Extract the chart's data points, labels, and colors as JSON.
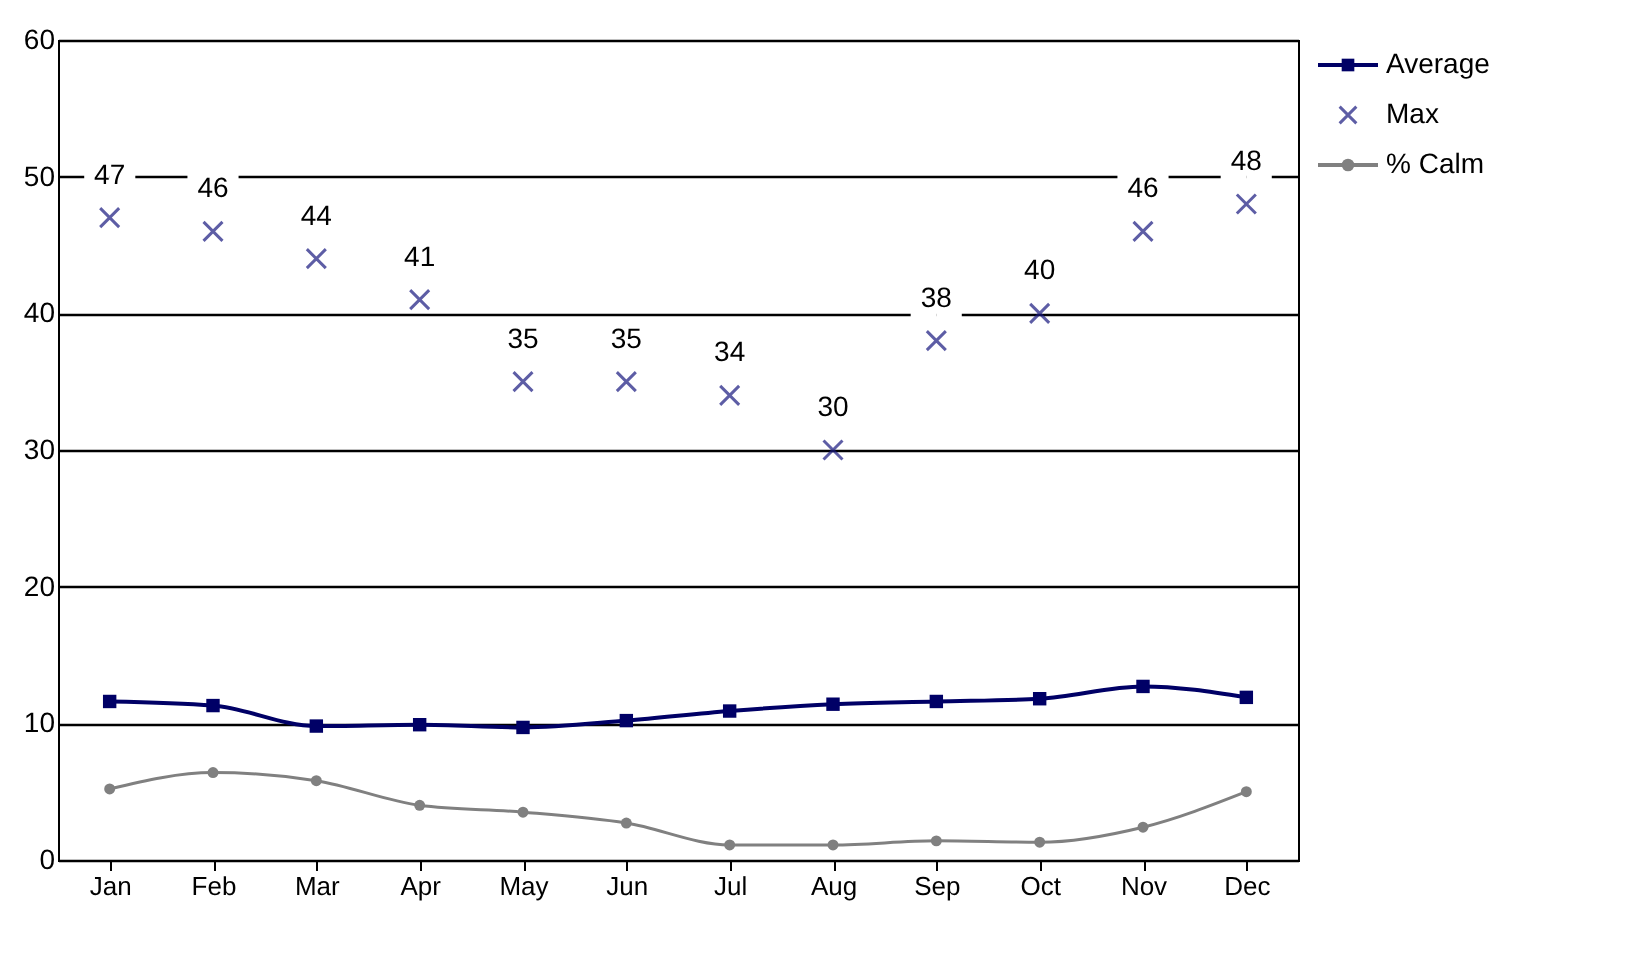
{
  "chart_data": {
    "type": "line",
    "categories": [
      "Jan",
      "Feb",
      "Mar",
      "Apr",
      "May",
      "Jun",
      "Jul",
      "Aug",
      "Sep",
      "Oct",
      "Nov",
      "Dec"
    ],
    "series": [
      {
        "name": "Average",
        "type": "line",
        "marker": "square",
        "color": "#000066",
        "values": [
          11.6,
          11.3,
          9.8,
          9.9,
          9.7,
          10.2,
          10.9,
          11.4,
          11.6,
          11.8,
          12.7,
          11.9
        ]
      },
      {
        "name": "Max",
        "type": "scatter",
        "marker": "cross",
        "color": "#1a1a80",
        "values": [
          47,
          46,
          44,
          41,
          35,
          35,
          34,
          30,
          38,
          40,
          46,
          48
        ],
        "value_labels": [
          "47",
          "46",
          "44",
          "41",
          "35",
          "35",
          "34",
          "30",
          "38",
          "40",
          "46",
          "48"
        ]
      },
      {
        "name": "% Calm",
        "type": "line",
        "marker": "circle",
        "color": "#808080",
        "values": [
          5.2,
          6.4,
          5.8,
          4.0,
          3.5,
          2.7,
          1.1,
          1.1,
          1.4,
          1.3,
          2.4,
          5.0
        ]
      }
    ],
    "ylim": [
      0,
      60
    ],
    "yticks": [
      0,
      10,
      20,
      30,
      40,
      50,
      60
    ],
    "grid": "y",
    "legend": "right",
    "line_style": "solid"
  }
}
